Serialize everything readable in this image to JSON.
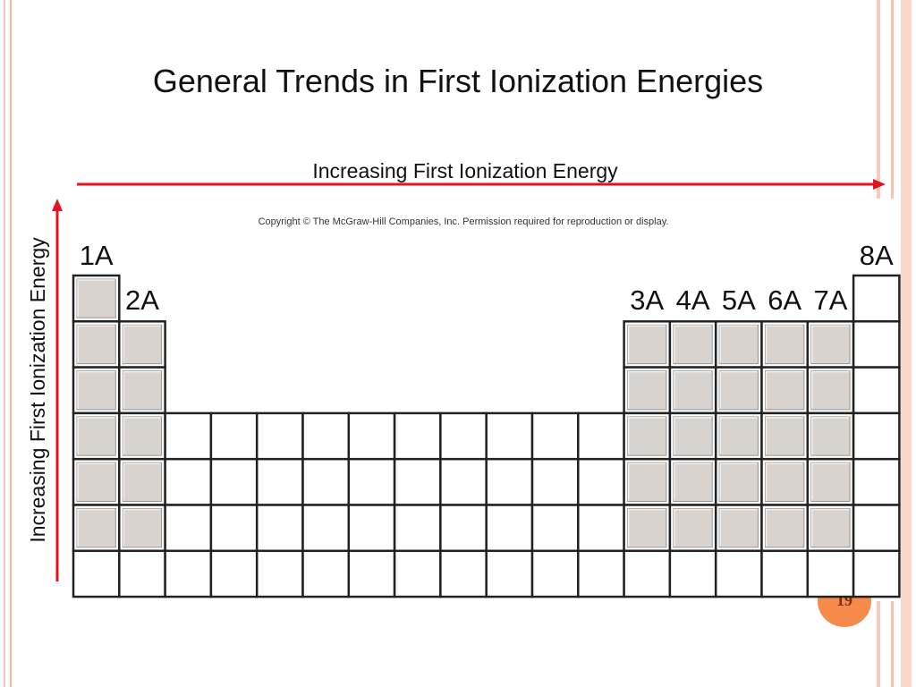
{
  "slide": {
    "title": "General Trends in First Ionization Energies",
    "horizontal_arrow_label": "Increasing First Ionization Energy",
    "vertical_arrow_label": "Increasing First Ionization Energy",
    "copyright": "Copyright © The McGraw-Hill Companies, Inc. Permission required for reproduction or display.",
    "page_number": "19"
  },
  "group_labels": [
    "1A",
    "2A",
    "3A",
    "4A",
    "5A",
    "6A",
    "7A",
    "8A"
  ],
  "colors": {
    "arrow": "#e0141c",
    "main_group_fill": "#d8d3cf",
    "cell_fill": "#ffffff",
    "cell_border": "#222222",
    "accent": "#f58a4b"
  }
}
